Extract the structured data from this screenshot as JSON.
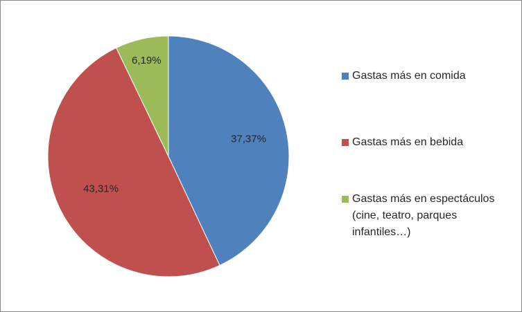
{
  "chart_data": {
    "type": "pie",
    "slices": [
      {
        "label": "Gastas más en comida",
        "value": 37.37,
        "value_label": "37,37%",
        "color": "#4f81bd"
      },
      {
        "label": "Gastas más en bebida",
        "value": 43.31,
        "value_label": "43,31%",
        "color": "#c0504d"
      },
      {
        "label": "Gastas más en espectáculos (cine, teatro, parques infantiles…)",
        "value": 6.19,
        "value_label": "6,19%",
        "color": "#9bbb59"
      }
    ],
    "legend_position": "right",
    "start_angle": "12 o'clock",
    "direction": "clockwise"
  }
}
